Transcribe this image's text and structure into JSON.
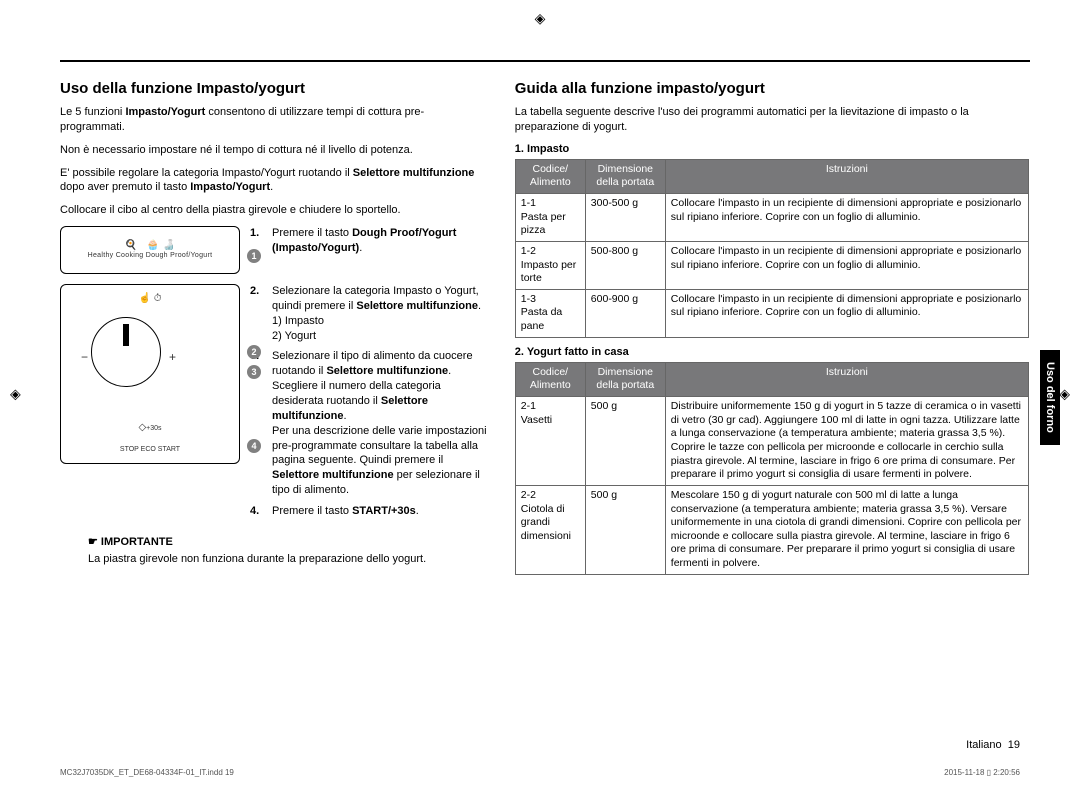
{
  "crop_glyph": "◈",
  "left": {
    "title": "Uso della funzione Impasto/yogurt",
    "intro1a": "Le 5 funzioni ",
    "intro1b": "Impasto/Yogurt",
    "intro1c": " consentono di utilizzare tempi di cottura pre-programmati.",
    "intro2": "Non è necessario impostare né il tempo di cottura né il livello di potenza.",
    "intro3a": "E' possibile regolare la categoria Impasto/Yogurt ruotando il ",
    "intro3b": "Selettore multifunzione",
    "intro3c": " dopo aver premuto il tasto ",
    "intro3d": "Impasto/Yogurt",
    "intro3e": ".",
    "intro4": "Collocare il cibo al centro della piastra girevole e chiudere lo sportello.",
    "panel1_label": "Healthy Cooking  Dough Proof/Yogurt",
    "panel2_bottom": "STOP  ECO    START",
    "panel2_plus30": "+30s",
    "callouts": [
      "1",
      "2",
      "3",
      "4"
    ],
    "steps": [
      {
        "n": "1.",
        "html": "Premere il tasto <b>Dough Proof/Yogurt (Impasto/Yogurt)</b>."
      },
      {
        "n": "2.",
        "html": "Selezionare la categoria Impasto o Yogurt, quindi premere il <b>Selettore multifunzione</b>.<br>1) Impasto<br>2) Yogurt"
      },
      {
        "n": "3.",
        "html": "Selezionare il tipo di alimento da cuocere ruotando il <b>Selettore multifunzione</b>. Scegliere il numero della categoria desiderata ruotando il <b>Selettore multifunzione</b>.<br>Per una descrizione delle varie impostazioni pre-programmate consultare la tabella alla pagina seguente. Quindi premere il <b>Selettore multifunzione</b> per selezionare il tipo di alimento."
      },
      {
        "n": "4.",
        "html": "Premere il tasto <b>START/+30s</b>."
      }
    ],
    "important_label": "☛ IMPORTANTE",
    "important_text": "La piastra girevole non funziona durante la preparazione dello yogurt."
  },
  "right": {
    "title": "Guida alla funzione impasto/yogurt",
    "intro": "La tabella seguente descrive l'uso dei programmi automatici per la lievitazione di impasto o la preparazione di yogurt.",
    "sub1": "1.  Impasto",
    "head": {
      "c1": "Codice/ Alimento",
      "c2": "Dimensione della portata",
      "c3": "Istruzioni"
    },
    "t1": [
      {
        "c": "1-1\nPasta per pizza",
        "d": "300-500 g",
        "i": "Collocare l'impasto in un recipiente di dimensioni appropriate e posizionarlo sul ripiano inferiore. Coprire con un foglio di alluminio."
      },
      {
        "c": "1-2\nImpasto per torte",
        "d": "500-800 g",
        "i": "Collocare l'impasto in un recipiente di dimensioni appropriate e posizionarlo sul ripiano inferiore. Coprire con un foglio di alluminio."
      },
      {
        "c": "1-3\nPasta da pane",
        "d": "600-900 g",
        "i": "Collocare l'impasto in un recipiente di dimensioni appropriate e posizionarlo sul ripiano inferiore. Coprire con un foglio di alluminio."
      }
    ],
    "sub2": "2.  Yogurt fatto in casa",
    "t2": [
      {
        "c": "2-1\nVasetti",
        "d": "500 g",
        "i": "Distribuire uniformemente 150 g di yogurt in 5 tazze di ceramica o in vasetti di vetro (30 gr cad). Aggiungere 100 ml di latte in ogni tazza. Utilizzare latte a lunga conservazione (a temperatura ambiente; materia grassa 3,5 %). Coprire le tazze con pellicola per microonde e collocarle in cerchio sulla piastra girevole. Al termine, lasciare in frigo 6 ore prima di consumare. Per preparare il primo yogurt si consiglia di usare fermenti in polvere."
      },
      {
        "c": "2-2\nCiotola di grandi dimensioni",
        "d": "500 g",
        "i": "Mescolare 150 g di yogurt naturale con 500 ml di latte a lunga conservazione (a temperatura ambiente; materia grassa 3,5 %). Versare uniformemente in una ciotola di grandi dimensioni. Coprire con pellicola per microonde e collocare sulla piastra girevole. Al termine, lasciare in frigo 6 ore prima di consumare. Per preparare il primo yogurt si consiglia di usare fermenti in polvere."
      }
    ]
  },
  "side_tab": "Uso del forno",
  "page_footer": {
    "lang": "Italiano",
    "num": "19"
  },
  "print_footer": {
    "left": "MC32J7035DK_ET_DE68-04334F-01_IT.indd   19",
    "right": "2015-11-18   ▯ 2:20:56"
  }
}
